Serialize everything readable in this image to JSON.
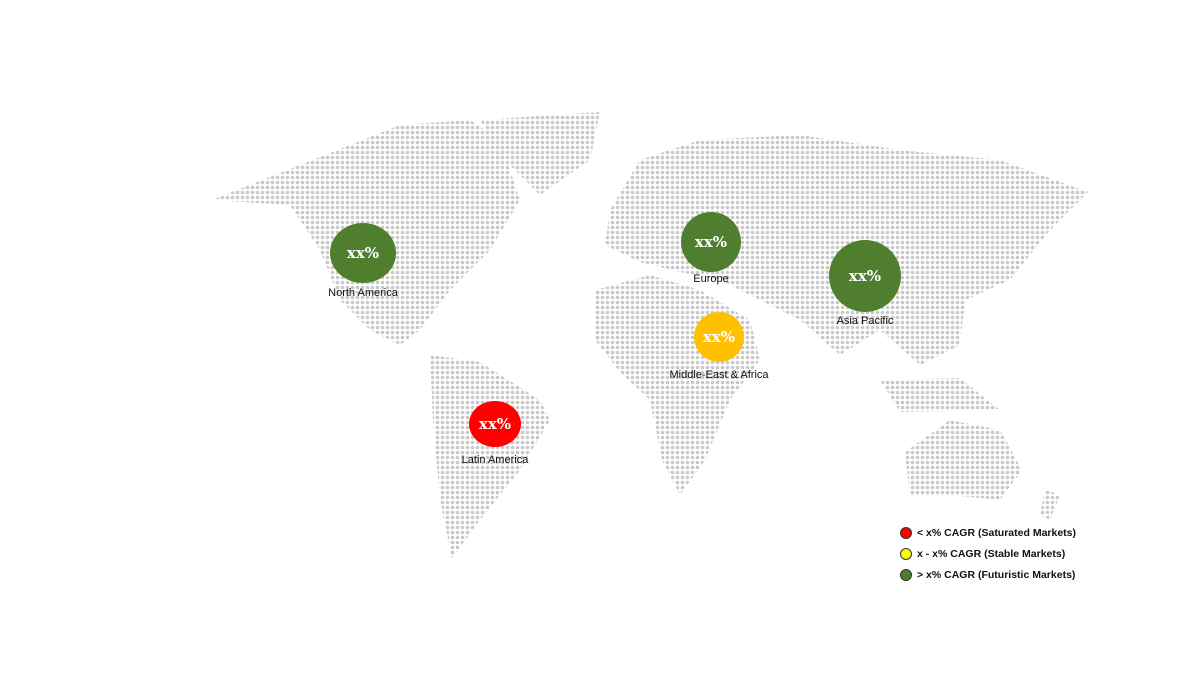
{
  "regions": [
    {
      "name": "North America",
      "value": "xx%",
      "color": "#4f7f2e",
      "category": "futuristic"
    },
    {
      "name": "Europe",
      "value": "xx%",
      "color": "#4f7f2e",
      "category": "futuristic"
    },
    {
      "name": "Asia Pacific",
      "value": "xx%",
      "color": "#4f7f2e",
      "category": "futuristic"
    },
    {
      "name": "Middle-East & Africa",
      "value": "xx%",
      "color": "#ffc000",
      "category": "stable"
    },
    {
      "name": "Latin America",
      "value": "xx%",
      "color": "#ff0000",
      "category": "saturated"
    }
  ],
  "legend": [
    {
      "label": "< x% CAGR (Saturated Markets)",
      "color": "#ff0000"
    },
    {
      "label": "x - x% CAGR (Stable Markets)",
      "color": "#ffff00"
    },
    {
      "label": "> x% CAGR (Futuristic Markets)",
      "color": "#4f7f2e"
    }
  ],
  "map_dot_color": "#c8c8c8"
}
